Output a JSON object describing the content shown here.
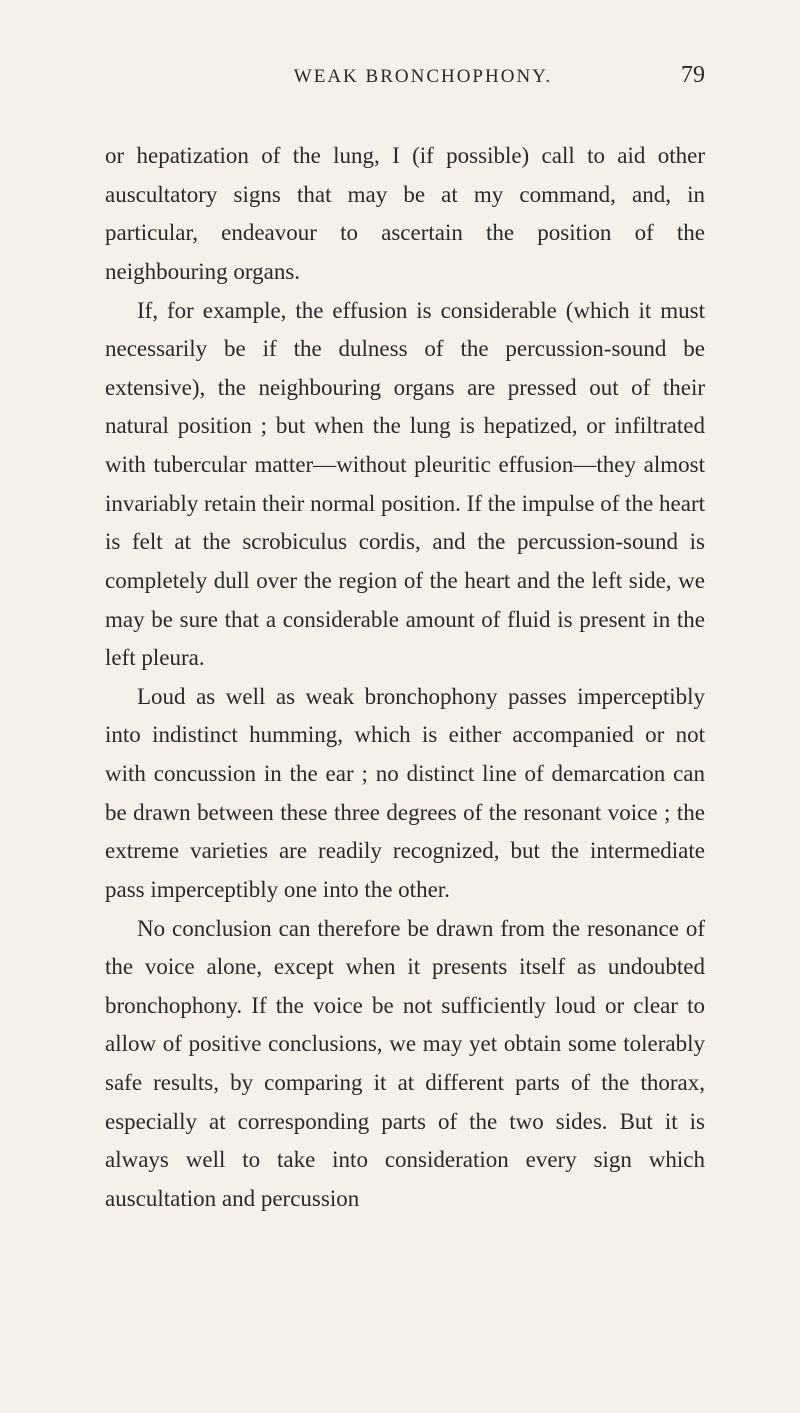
{
  "header": {
    "title": "WEAK BRONCHOPHONY.",
    "pageNumber": "79"
  },
  "paragraphs": [
    "or hepatization of the lung, I (if possible) call to aid other auscultatory signs that may be at my command, and, in particular, endeavour to ascertain the position of the neighbouring organs.",
    "If, for example, the effusion is considerable (which it must necessarily be if the dulness of the percussion-sound be extensive), the neighbouring organs are pressed out of their natural position ; but when the lung is hepatized, or infiltrated with tubercular matter—without pleuritic effusion—they almost invariably retain their normal position. If the impulse of the heart is felt at the scrobiculus cordis, and the percussion-sound is completely dull over the region of the heart and the left side, we may be sure that a considerable amount of fluid is present in the left pleura.",
    "Loud as well as weak bronchophony passes imperceptibly into indistinct humming, which is either accompanied or not with concussion in the ear ; no distinct line of demarcation can be drawn between these three degrees of the resonant voice ; the extreme varieties are readily recognized, but the intermediate pass imperceptibly one into the other.",
    "No conclusion can therefore be drawn from the resonance of the voice alone, except when it presents itself as undoubted bronchophony. If the voice be not sufficiently loud or clear to allow of positive conclusions, we may yet obtain some tolerably safe results, by comparing it at different parts of the thorax, especially at corresponding parts of the two sides. But it is always well to take into consideration every sign which auscultation and percussion"
  ]
}
